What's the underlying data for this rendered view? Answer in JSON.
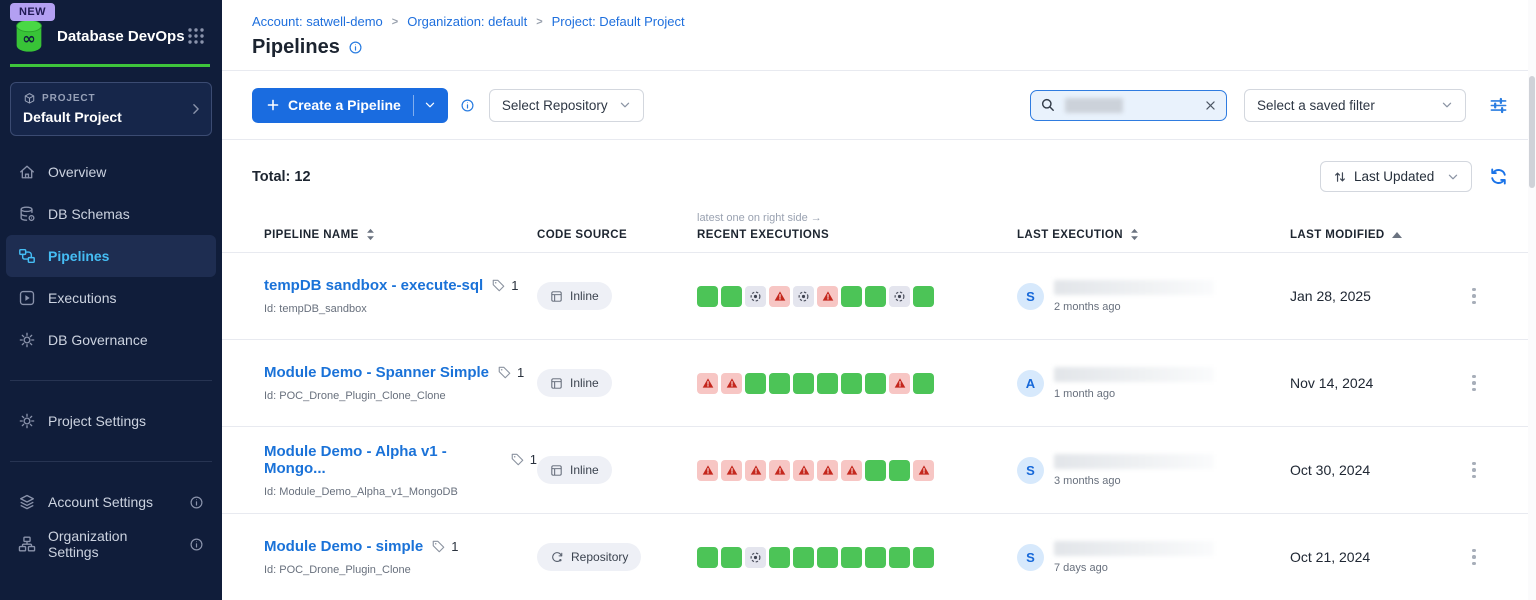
{
  "colors": {
    "accent_blue": "#1a6ce0",
    "link_blue": "#1e6fdd",
    "sidebar_bg": "#101d3a",
    "selected_nav_text": "#45bdf4",
    "brand_green": "#3ec53b",
    "success_green": "#4cc457",
    "warning_bg": "#f7c6c4",
    "warning_icon": "#c4271d",
    "skipped_bg": "#e4e5ee",
    "new_badge_bg": "#b3a0f2"
  },
  "icons": {
    "app_logo": "database-infinity",
    "app_grid": "grid-dots",
    "project": "cube",
    "project_chevron": "chevron-right",
    "breadcrumb_separator": ">",
    "info": "info-circle",
    "create_plus": "plus",
    "dropdown_chevron": "chevron-down",
    "search": "magnifier",
    "search_clear": "x",
    "filter_settings": "sliders",
    "sort_direction": "arrows-up-down",
    "refresh": "refresh-arrows",
    "sort_both": "caret-up-down",
    "sort_asc": "caret-up",
    "tag": "tag",
    "row_menu": "kebab-dots",
    "inline_source": "inline-doc",
    "repository_source": "sync-arrow-gear",
    "execution_success": "green-square",
    "execution_warning": "warning-triangle",
    "execution_skipped": "dashed-circle-dot"
  },
  "sidebar": {
    "new_badge": "NEW",
    "app_title": "Database DevOps",
    "project_label": "PROJECT",
    "project_name": "Default Project",
    "nav": [
      {
        "label": "Overview",
        "icon": "home",
        "selected": false
      },
      {
        "label": "DB Schemas",
        "icon": "database",
        "selected": false
      },
      {
        "label": "Pipelines",
        "icon": "pipeline",
        "selected": true
      },
      {
        "label": "Executions",
        "icon": "play",
        "selected": false
      },
      {
        "label": "DB Governance",
        "icon": "gear",
        "selected": false
      }
    ],
    "nav2": [
      {
        "label": "Project Settings",
        "icon": "gear",
        "selected": false
      }
    ],
    "nav3": [
      {
        "label": "Account Settings",
        "icon": "layers",
        "selected": false,
        "info": true
      },
      {
        "label": "Organization Settings",
        "icon": "org",
        "selected": false,
        "info": true
      }
    ]
  },
  "header": {
    "breadcrumb": [
      "Account: satwell-demo",
      "Organization: default",
      "Project: Default Project"
    ],
    "separator": ">",
    "title": "Pipelines"
  },
  "toolbar": {
    "create_label": "Create a Pipeline",
    "repository_dropdown": "Select Repository",
    "search_value": "",
    "saved_filter_dropdown": "Select a saved filter"
  },
  "list_header": {
    "total": "Total: 12",
    "sort": "Last Updated"
  },
  "table": {
    "executions_hint": "latest one on right side →",
    "columns": {
      "name": "PIPELINE NAME",
      "source": "CODE SOURCE",
      "executions": "RECENT EXECUTIONS",
      "last_execution": "LAST EXECUTION",
      "last_modified": "LAST MODIFIED"
    },
    "rows": [
      {
        "name": "tempDB sandbox - execute-sql",
        "tag_count": "1",
        "id": "Id: tempDB_sandbox",
        "code_source": "Inline",
        "executions": [
          "success",
          "success",
          "skipped",
          "warning",
          "skipped",
          "warning",
          "success",
          "success",
          "skipped",
          "success"
        ],
        "avatar": "S",
        "last_execution_ago": "2 months ago",
        "last_modified": "Jan 28, 2025"
      },
      {
        "name": "Module Demo - Spanner Simple",
        "tag_count": "1",
        "id": "Id: POC_Drone_Plugin_Clone_Clone",
        "code_source": "Inline",
        "executions": [
          "warning",
          "warning",
          "success",
          "success",
          "success",
          "success",
          "success",
          "success",
          "warning",
          "success"
        ],
        "avatar": "A",
        "last_execution_ago": "1 month ago",
        "last_modified": "Nov 14, 2024"
      },
      {
        "name": "Module Demo - Alpha v1 - Mongo...",
        "tag_count": "1",
        "id": "Id: Module_Demo_Alpha_v1_MongoDB",
        "code_source": "Inline",
        "executions": [
          "warning",
          "warning",
          "warning",
          "warning",
          "warning",
          "warning",
          "warning",
          "success",
          "success",
          "warning"
        ],
        "avatar": "S",
        "last_execution_ago": "3 months ago",
        "last_modified": "Oct 30, 2024"
      },
      {
        "name": "Module Demo - simple",
        "tag_count": "1",
        "id": "Id: POC_Drone_Plugin_Clone",
        "code_source": "Repository",
        "executions": [
          "success",
          "success",
          "skipped",
          "success",
          "success",
          "success",
          "success",
          "success",
          "success",
          "success"
        ],
        "avatar": "S",
        "last_execution_ago": "7 days ago",
        "last_modified": "Oct 21, 2024"
      }
    ]
  }
}
